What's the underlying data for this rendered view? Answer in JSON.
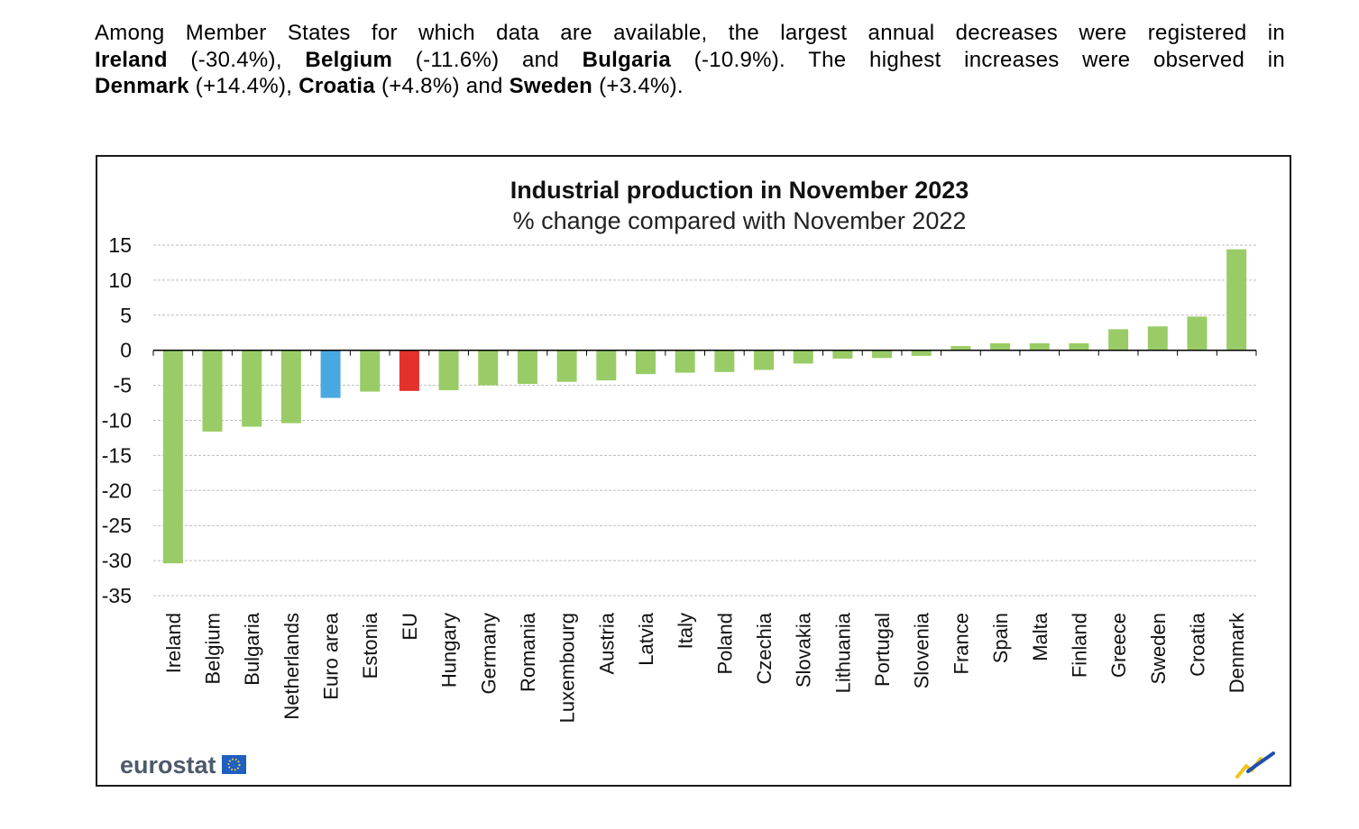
{
  "paragraph": {
    "l1_a": "Among Member States for which data are available, the largest annual decreases were registered in",
    "l2_c1": "Ireland",
    "l2_v1": " (-30.4%), ",
    "l2_c2": "Belgium",
    "l2_v2": " (-11.6%) and ",
    "l2_c3": "Bulgaria",
    "l2_v3": " (-10.9%). The highest increases were observed in",
    "l3_c1": "Denmark",
    "l3_v1": " (+14.4%), ",
    "l3_c2": "Croatia",
    "l3_v2": " (+4.8%) and ",
    "l3_c3": "Sweden",
    "l3_v3": " (+3.4%)."
  },
  "logo": {
    "text": "eurostat"
  },
  "colors": {
    "member_state": "#99cc66",
    "euro_area": "#4aa8e0",
    "eu": "#e4312b",
    "grid": "#bdbdbd",
    "axis": "#000000"
  },
  "chart_data": {
    "type": "bar",
    "title": "Industrial production in November 2023",
    "subtitle": "% change compared with November 2022",
    "xlabel": "",
    "ylabel": "",
    "ylim": [
      -35,
      15
    ],
    "yticks": [
      15,
      10,
      5,
      0,
      -5,
      -10,
      -15,
      -20,
      -25,
      -30,
      -35
    ],
    "grid": true,
    "categories": [
      "Ireland",
      "Belgium",
      "Bulgaria",
      "Netherlands",
      "Euro area",
      "Estonia",
      "EU",
      "Hungary",
      "Germany",
      "Romania",
      "Luxembourg",
      "Austria",
      "Latvia",
      "Italy",
      "Poland",
      "Czechia",
      "Slovakia",
      "Lithuania",
      "Portugal",
      "Slovenia",
      "France",
      "Spain",
      "Malta",
      "Finland",
      "Greece",
      "Sweden",
      "Croatia",
      "Denmark"
    ],
    "values": [
      -30.4,
      -11.6,
      -10.9,
      -10.4,
      -6.8,
      -5.9,
      -5.8,
      -5.7,
      -5.0,
      -4.8,
      -4.5,
      -4.3,
      -3.4,
      -3.2,
      -3.1,
      -2.8,
      -1.9,
      -1.2,
      -1.1,
      -0.8,
      0.6,
      1.0,
      1.0,
      1.0,
      3.0,
      3.4,
      4.8,
      14.4
    ],
    "bar_groups": [
      "member",
      "member",
      "member",
      "member",
      "euro_area",
      "member",
      "eu",
      "member",
      "member",
      "member",
      "member",
      "member",
      "member",
      "member",
      "member",
      "member",
      "member",
      "member",
      "member",
      "member",
      "member",
      "member",
      "member",
      "member",
      "member",
      "member",
      "member",
      "member"
    ]
  }
}
